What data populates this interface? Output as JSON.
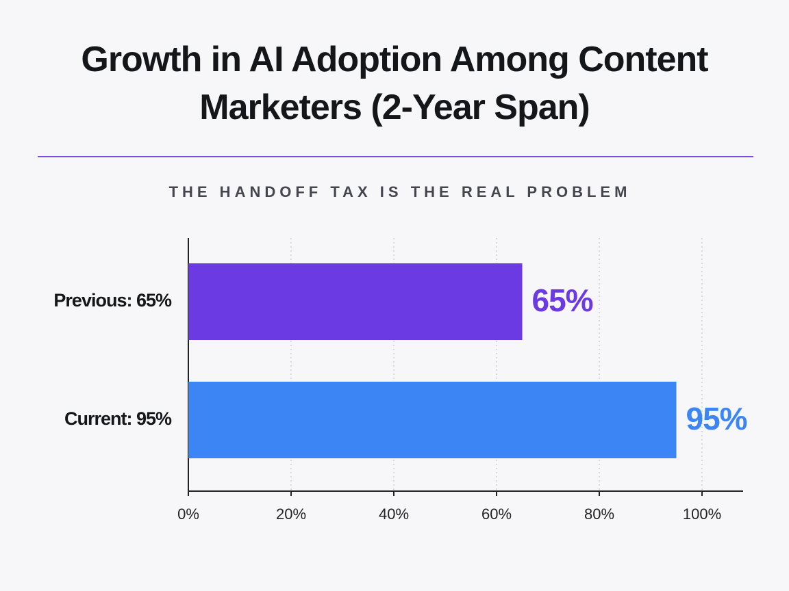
{
  "chart_data": {
    "type": "hbar",
    "title": "Growth in AI Adoption Among Content Marketers (2-Year Span)",
    "subtitle": "THE HANDOFF TAX IS THE REAL PROBLEM",
    "categories": [
      "Previous: 65%",
      "Current: 95%"
    ],
    "values": [
      65,
      95
    ],
    "value_labels": [
      "65%",
      "95%"
    ],
    "colors": [
      "#6b3ae3",
      "#3b86f4"
    ],
    "xlim": [
      0,
      108
    ],
    "xticks": [
      {
        "value": 0,
        "label": "0%"
      },
      {
        "value": 20,
        "label": "20%"
      },
      {
        "value": 40,
        "label": "40%"
      },
      {
        "value": 60,
        "label": "60%"
      },
      {
        "value": 80,
        "label": "80%"
      },
      {
        "value": 100,
        "label": "100%"
      }
    ],
    "grid": true
  }
}
